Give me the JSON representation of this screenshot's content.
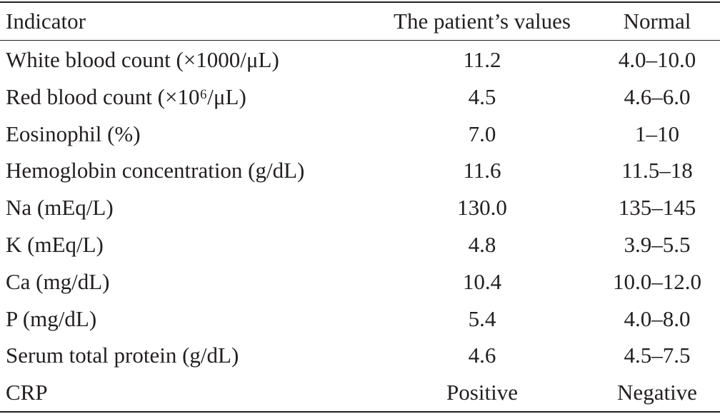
{
  "table": {
    "header": [
      "Indicator",
      "The patient’s values",
      "Normal"
    ],
    "rows": [
      [
        "White blood count (×1000/μL)",
        "11.2",
        "4.0–10.0"
      ],
      [
        "Red blood count (×10⁶/μL)",
        "4.5",
        "4.6–6.0"
      ],
      [
        "Eosinophil (%)",
        "7.0",
        "1–10"
      ],
      [
        "Hemoglobin concentration (g/dL)",
        "11.6",
        "11.5–18"
      ],
      [
        "Na (mEq/L)",
        "130.0",
        "135–145"
      ],
      [
        "K (mEq/L)",
        "4.8",
        "3.9–5.5"
      ],
      [
        "Ca (mg/dL)",
        "10.4",
        "10.0–12.0"
      ],
      [
        "P (mg/dL)",
        "5.4",
        "4.0–8.0"
      ],
      [
        "Serum total protein (g/dL)",
        "4.6",
        "4.5–7.5"
      ],
      [
        "CRP",
        "Positive",
        "Negative"
      ]
    ]
  }
}
